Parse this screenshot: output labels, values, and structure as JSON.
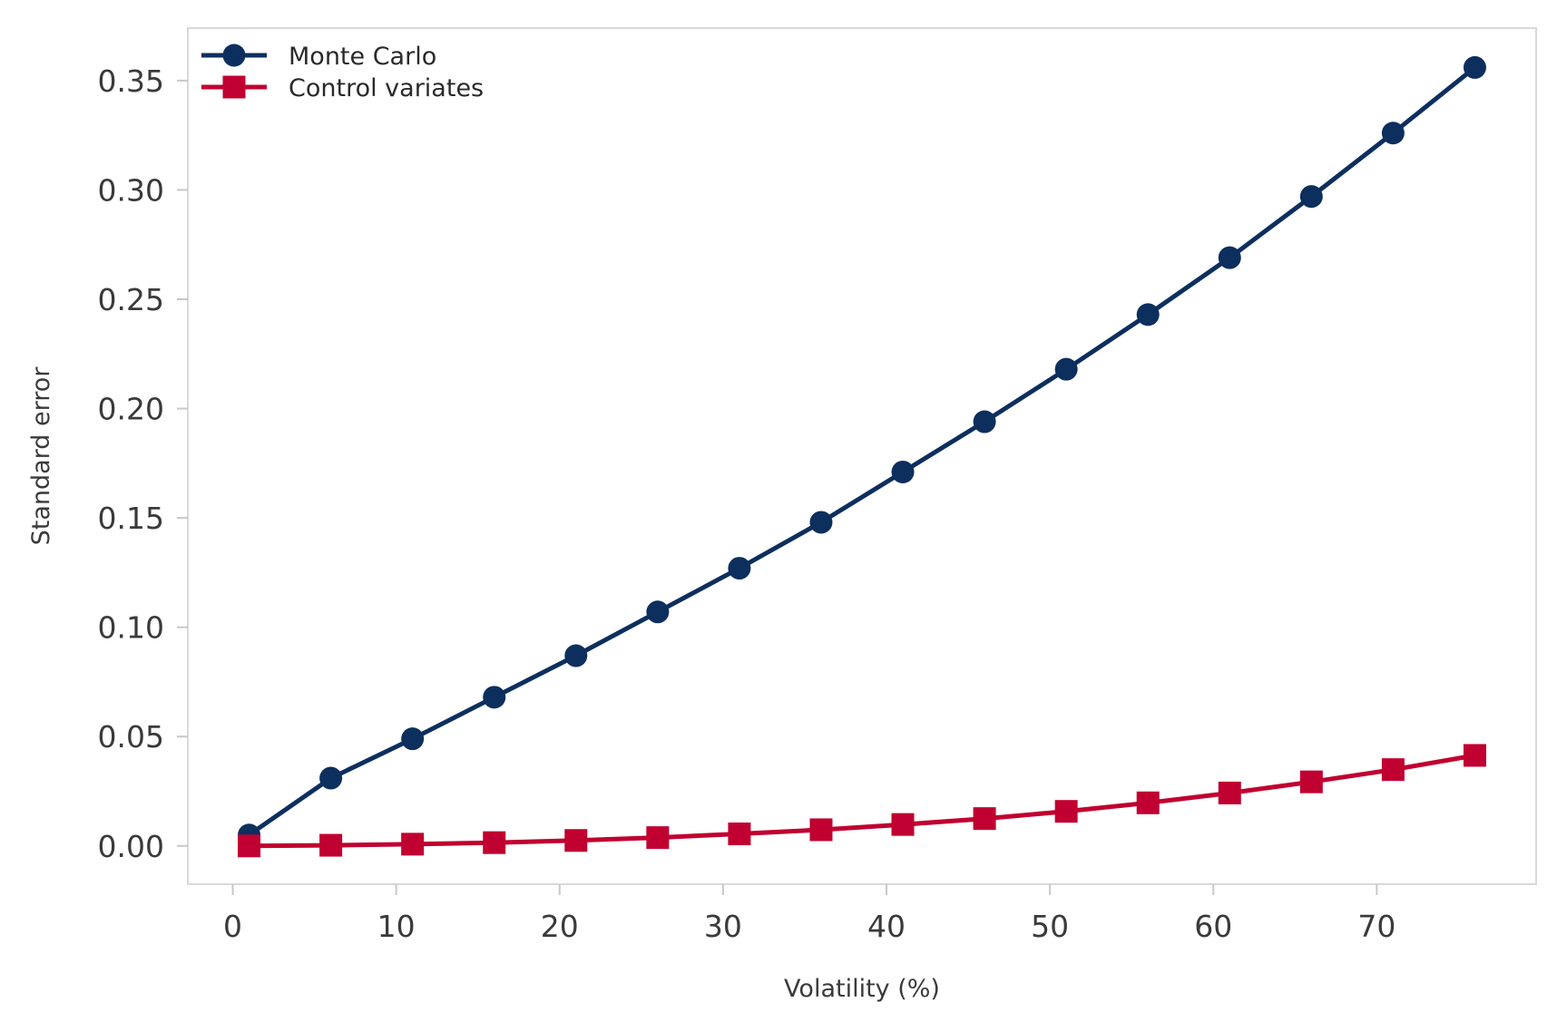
{
  "chart_data": {
    "type": "line",
    "title": "",
    "xlabel": "Volatility (%)",
    "ylabel": "Standard error",
    "xlim": [
      -2.75,
      79.75
    ],
    "ylim": [
      -0.0175,
      0.374
    ],
    "x_ticks": [
      0,
      10,
      20,
      30,
      40,
      50,
      60,
      70
    ],
    "y_ticks": [
      0.0,
      0.05,
      0.1,
      0.15,
      0.2,
      0.25,
      0.3,
      0.35
    ],
    "x_tick_labels": [
      "0",
      "10",
      "20",
      "30",
      "40",
      "50",
      "60",
      "70"
    ],
    "y_tick_labels": [
      "0.00",
      "0.05",
      "0.10",
      "0.15",
      "0.20",
      "0.25",
      "0.30",
      "0.35"
    ],
    "grid": false,
    "legend_position": "top-left",
    "x": [
      1,
      6,
      11,
      16,
      21,
      26,
      31,
      36,
      41,
      46,
      51,
      56,
      61,
      66,
      71,
      76
    ],
    "series": [
      {
        "name": "Monte Carlo",
        "marker": "circle",
        "color": "#0d2f5e",
        "values": [
          0.005,
          0.031,
          0.049,
          0.068,
          0.087,
          0.107,
          0.127,
          0.148,
          0.171,
          0.194,
          0.218,
          0.243,
          0.269,
          0.297,
          0.326,
          0.356
        ]
      },
      {
        "name": "Control variates",
        "marker": "square",
        "color": "#c00030",
        "values": [
          0.0,
          0.0003,
          0.0008,
          0.0015,
          0.0025,
          0.0038,
          0.0055,
          0.0074,
          0.0098,
          0.0125,
          0.0158,
          0.0197,
          0.0242,
          0.0293,
          0.0349,
          0.0414
        ]
      }
    ]
  }
}
